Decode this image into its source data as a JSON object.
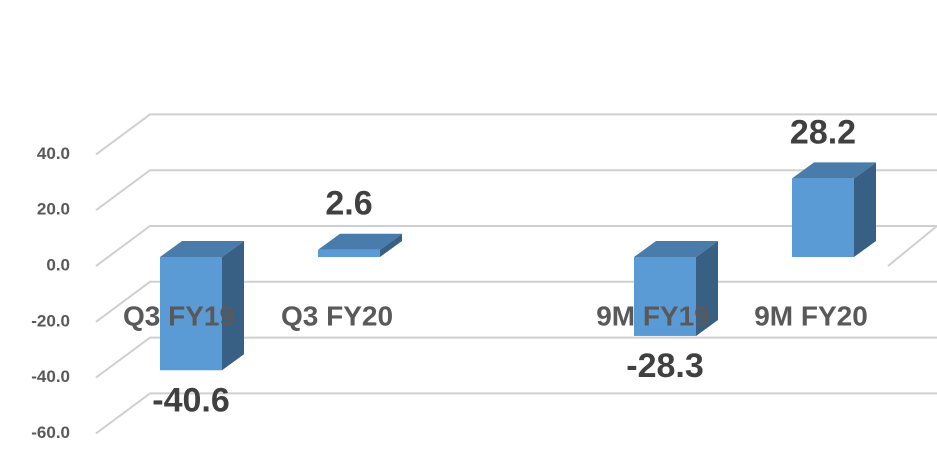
{
  "chart_data": {
    "type": "bar3d",
    "categories": [
      "Q3 FY19",
      "Q3 FY20",
      null,
      "9M FY19",
      "9M FY20"
    ],
    "values": [
      -40.6,
      2.6,
      null,
      -28.3,
      28.2
    ],
    "color": "#5b9bd5",
    "ylim": [
      -60,
      40
    ],
    "yticks": [
      {
        "value": 40,
        "label": "40.0"
      },
      {
        "value": 20,
        "label": "20.0"
      },
      {
        "value": 0,
        "label": "0.0"
      },
      {
        "value": -20,
        "label": "-20.0"
      },
      {
        "value": -40,
        "label": "-40.0"
      },
      {
        "value": -60,
        "label": "-60.0"
      }
    ],
    "grid": true
  }
}
